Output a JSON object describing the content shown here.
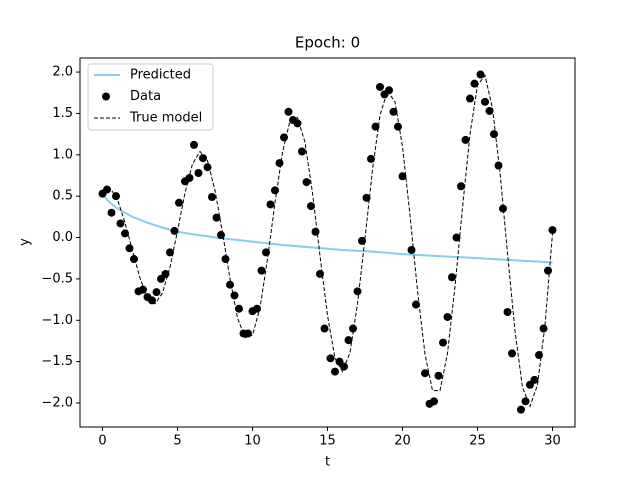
{
  "chart_data": {
    "type": "line",
    "title": "Epoch: 0",
    "x_label": "t",
    "y_label": "y",
    "xlim": [
      -1.5,
      31.5
    ],
    "ylim": [
      -2.29,
      2.17
    ],
    "xticks": [
      0,
      5,
      10,
      15,
      20,
      25,
      30
    ],
    "yticks": [
      {
        "value": -2.0,
        "label": "−2.0"
      },
      {
        "value": -1.5,
        "label": "−1.5"
      },
      {
        "value": -1.0,
        "label": "−1.0"
      },
      {
        "value": -0.5,
        "label": "−0.5"
      },
      {
        "value": 0.0,
        "label": "0.0"
      },
      {
        "value": 0.5,
        "label": "0.5"
      },
      {
        "value": 1.0,
        "label": "1.0"
      },
      {
        "value": 1.5,
        "label": "1.5"
      },
      {
        "value": 2.0,
        "label": "2.0"
      }
    ],
    "grid": false,
    "legend": "upper left",
    "series": [
      {
        "name": "Predicted",
        "kind": "line",
        "linestyle": "solid",
        "color": "#87ceeb",
        "x": [
          0,
          0.5,
          1,
          2,
          3,
          4,
          5,
          6,
          8,
          10,
          12,
          14,
          16,
          18,
          20,
          22,
          24,
          26,
          28,
          30
        ],
        "values": [
          0.52,
          0.42,
          0.35,
          0.25,
          0.18,
          0.12,
          0.07,
          0.04,
          -0.01,
          -0.05,
          -0.09,
          -0.12,
          -0.15,
          -0.17,
          -0.2,
          -0.22,
          -0.24,
          -0.26,
          -0.28,
          -0.3
        ]
      },
      {
        "name": "Data",
        "kind": "scatter",
        "color": "#000000",
        "x": [
          0.0,
          0.3,
          0.6,
          0.9,
          1.2,
          1.5,
          1.8,
          2.1,
          2.4,
          2.7,
          3.0,
          3.3,
          3.6,
          3.9,
          4.2,
          4.5,
          4.8,
          5.1,
          5.5,
          5.8,
          6.1,
          6.4,
          6.7,
          7.0,
          7.3,
          7.6,
          7.9,
          8.2,
          8.5,
          8.8,
          9.1,
          9.4,
          9.7,
          10.0,
          10.3,
          10.6,
          10.9,
          11.2,
          11.5,
          11.8,
          12.1,
          12.4,
          12.7,
          13.0,
          13.3,
          13.6,
          13.9,
          14.2,
          14.5,
          14.8,
          15.2,
          15.5,
          15.8,
          16.1,
          16.4,
          16.7,
          17.0,
          17.3,
          17.6,
          17.9,
          18.2,
          18.5,
          18.8,
          19.1,
          19.4,
          19.7,
          20.0,
          20.6,
          20.9,
          21.5,
          21.8,
          22.1,
          22.4,
          22.7,
          23.0,
          23.3,
          23.6,
          23.9,
          24.2,
          24.5,
          24.8,
          25.2,
          25.5,
          25.8,
          26.1,
          26.4,
          26.7,
          27.0,
          27.3,
          27.9,
          28.2,
          28.5,
          28.8,
          29.1,
          29.4,
          29.7,
          30.0
        ],
        "values": [
          0.53,
          0.58,
          0.3,
          0.5,
          0.17,
          0.05,
          -0.13,
          -0.26,
          -0.65,
          -0.63,
          -0.72,
          -0.76,
          -0.66,
          -0.5,
          -0.44,
          -0.18,
          0.08,
          0.42,
          0.68,
          0.72,
          1.12,
          0.78,
          0.96,
          0.85,
          0.49,
          0.24,
          0.03,
          -0.26,
          -0.57,
          -0.7,
          -0.86,
          -1.16,
          -1.16,
          -0.89,
          -0.86,
          -0.4,
          -0.18,
          0.4,
          0.57,
          0.9,
          1.21,
          1.52,
          1.42,
          1.38,
          1.04,
          0.67,
          0.38,
          0.07,
          -0.44,
          -1.1,
          -1.46,
          -1.62,
          -1.5,
          -1.56,
          -1.24,
          -1.1,
          -0.65,
          -0.04,
          0.48,
          0.95,
          1.34,
          1.82,
          1.73,
          1.78,
          1.52,
          1.34,
          0.74,
          -0.15,
          -0.81,
          -1.64,
          -2.01,
          -1.98,
          -1.67,
          -1.27,
          -0.96,
          -0.48,
          0.0,
          0.62,
          1.18,
          1.68,
          1.86,
          1.97,
          1.64,
          1.53,
          1.25,
          0.87,
          0.35,
          -0.9,
          -1.4,
          -2.08,
          -1.98,
          -1.78,
          -1.72,
          -1.42,
          -1.1,
          -0.4,
          0.09
        ]
      },
      {
        "name": "True model",
        "kind": "line",
        "linestyle": "dashed",
        "color": "#000000",
        "x": [
          0,
          0.5,
          1,
          1.5,
          2,
          2.5,
          3,
          3.5,
          4,
          4.5,
          5,
          5.5,
          6,
          6.5,
          7,
          7.5,
          8,
          8.5,
          9,
          9.5,
          10,
          10.5,
          11,
          11.5,
          12,
          12.5,
          13,
          13.5,
          14,
          14.5,
          15,
          15.5,
          16,
          16.5,
          17,
          17.5,
          18,
          18.5,
          19,
          19.5,
          20,
          20.5,
          21,
          21.5,
          22,
          22.5,
          23,
          23.5,
          24,
          24.5,
          25,
          25.5,
          26,
          26.5,
          27,
          27.5,
          28,
          28.5,
          29,
          29.5,
          30
        ],
        "values": [
          0.55,
          0.6,
          0.46,
          0.18,
          -0.16,
          -0.49,
          -0.73,
          -0.8,
          -0.67,
          -0.36,
          0.08,
          0.54,
          0.89,
          1.04,
          0.93,
          0.57,
          0.06,
          -0.5,
          -0.97,
          -1.21,
          -1.18,
          -0.85,
          -0.26,
          0.42,
          1.03,
          1.41,
          1.45,
          1.15,
          0.54,
          -0.22,
          -0.94,
          -1.46,
          -1.62,
          -1.39,
          -0.8,
          -0.01,
          0.82,
          1.48,
          1.77,
          1.64,
          1.1,
          0.27,
          -0.64,
          -1.41,
          -1.85,
          -1.85,
          -1.4,
          -0.59,
          0.36,
          1.25,
          1.84,
          1.96,
          1.56,
          0.79,
          -0.19,
          -1.13,
          -1.81,
          -2.04,
          -1.78,
          -1.06,
          0.05
        ]
      }
    ]
  }
}
